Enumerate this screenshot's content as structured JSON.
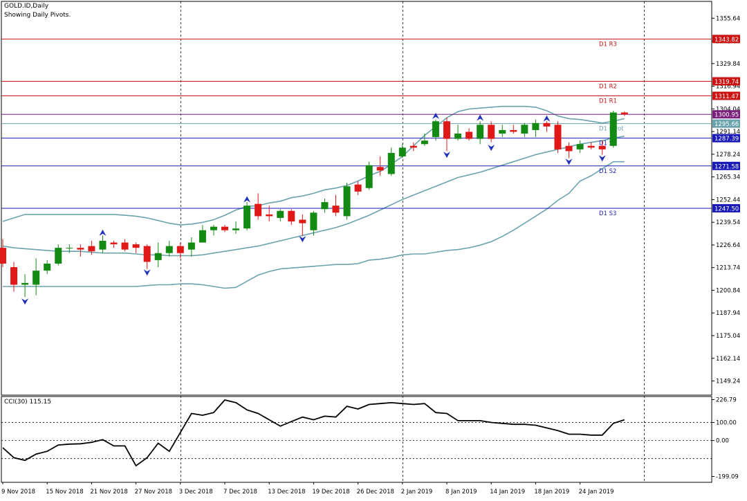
{
  "header": {
    "symbol_line": "GOLD.ID,Daily",
    "subtitle": "Showing Daily Pivots."
  },
  "cci_label": "CCI(30) 115.15",
  "colors": {
    "bull": "#138a13",
    "bear": "#e01818",
    "bands": "#6aa3ad",
    "resistance": "#cc1111",
    "support": "#1a1ab8",
    "pivot": "#6aa3ad",
    "close_line": "#7a1f7a",
    "fractal": "#2233bb",
    "cci_line": "#000000"
  },
  "chart_data": [
    {
      "type": "candlestick",
      "title": "GOLD.ID,Daily",
      "subtitle": "Showing Daily Pivots.",
      "ylim": [
        1140.0,
        1366.0
      ],
      "y_ticks": [
        "1355.64",
        "1342.64",
        "1329.84",
        "1316.94",
        "1304.04",
        "1291.14",
        "1278.24",
        "1265.34",
        "1252.44",
        "1239.54",
        "1226.64",
        "1213.74",
        "1200.84",
        "1187.94",
        "1175.04",
        "1162.14",
        "1149.24"
      ],
      "x_tick_labels": [
        "9 Nov 2018",
        "15 Nov 2018",
        "21 Nov 2018",
        "27 Nov 2018",
        "3 Dec 2018",
        "7 Dec 2018",
        "13 Dec 2018",
        "19 Dec 2018",
        "26 Dec 2018",
        "2 Jan 2019",
        "8 Jan 2019",
        "14 Jan 2019",
        "18 Jan 2019",
        "24 Jan 2019"
      ],
      "x_tick_bar_index": [
        0,
        4,
        8,
        12,
        16,
        20,
        24,
        28,
        32,
        36,
        40,
        44,
        48,
        52
      ],
      "grid": "vertical dashed at 3 Dec 2018, 2 Jan 2019 and right edge",
      "candles": [
        {
          "o": 1225.0,
          "h": 1230.0,
          "l": 1214.0,
          "c": 1216.0
        },
        {
          "o": 1214.0,
          "h": 1217.0,
          "l": 1200.0,
          "c": 1204.0
        },
        {
          "o": 1204.0,
          "h": 1210.0,
          "l": 1197.0,
          "c": 1205.0
        },
        {
          "o": 1204.0,
          "h": 1219.0,
          "l": 1198.0,
          "c": 1212.0
        },
        {
          "o": 1212.0,
          "h": 1218.0,
          "l": 1210.0,
          "c": 1216.0
        },
        {
          "o": 1216.0,
          "h": 1227.0,
          "l": 1215.0,
          "c": 1225.0
        },
        {
          "o": 1225.0,
          "h": 1227.0,
          "l": 1222.0,
          "c": 1225.0
        },
        {
          "o": 1225.0,
          "h": 1227.0,
          "l": 1220.0,
          "c": 1224.0
        },
        {
          "o": 1226.0,
          "h": 1229.0,
          "l": 1221.0,
          "c": 1223.0
        },
        {
          "o": 1224.0,
          "h": 1232.0,
          "l": 1222.0,
          "c": 1229.0
        },
        {
          "o": 1228.0,
          "h": 1229.0,
          "l": 1225.0,
          "c": 1227.0
        },
        {
          "o": 1228.0,
          "h": 1230.0,
          "l": 1223.0,
          "c": 1224.0
        },
        {
          "o": 1227.0,
          "h": 1228.0,
          "l": 1222.0,
          "c": 1225.0
        },
        {
          "o": 1226.0,
          "h": 1227.0,
          "l": 1213.0,
          "c": 1217.0
        },
        {
          "o": 1218.0,
          "h": 1228.0,
          "l": 1214.0,
          "c": 1222.0
        },
        {
          "o": 1222.0,
          "h": 1229.0,
          "l": 1220.0,
          "c": 1226.0
        },
        {
          "o": 1226.0,
          "h": 1228.0,
          "l": 1219.0,
          "c": 1222.0
        },
        {
          "o": 1224.0,
          "h": 1231.0,
          "l": 1220.0,
          "c": 1228.0
        },
        {
          "o": 1228.0,
          "h": 1238.0,
          "l": 1228.0,
          "c": 1235.0
        },
        {
          "o": 1235.0,
          "h": 1238.0,
          "l": 1232.0,
          "c": 1237.0
        },
        {
          "o": 1237.0,
          "h": 1238.0,
          "l": 1234.0,
          "c": 1235.0
        },
        {
          "o": 1235.0,
          "h": 1240.0,
          "l": 1233.0,
          "c": 1236.0
        },
        {
          "o": 1236.0,
          "h": 1251.0,
          "l": 1235.0,
          "c": 1249.0
        },
        {
          "o": 1250.0,
          "h": 1256.0,
          "l": 1241.0,
          "c": 1243.0
        },
        {
          "o": 1244.0,
          "h": 1249.0,
          "l": 1240.0,
          "c": 1243.0
        },
        {
          "o": 1242.0,
          "h": 1247.0,
          "l": 1240.0,
          "c": 1246.0
        },
        {
          "o": 1246.0,
          "h": 1247.0,
          "l": 1238.0,
          "c": 1240.0
        },
        {
          "o": 1241.0,
          "h": 1244.0,
          "l": 1232.0,
          "c": 1239.0
        },
        {
          "o": 1235.0,
          "h": 1246.0,
          "l": 1232.0,
          "c": 1245.0
        },
        {
          "o": 1247.0,
          "h": 1253.0,
          "l": 1245.0,
          "c": 1251.0
        },
        {
          "o": 1249.0,
          "h": 1255.0,
          "l": 1243.0,
          "c": 1245.0
        },
        {
          "o": 1243.0,
          "h": 1262.0,
          "l": 1241.0,
          "c": 1260.0
        },
        {
          "o": 1261.0,
          "h": 1263.0,
          "l": 1255.0,
          "c": 1257.0
        },
        {
          "o": 1259.0,
          "h": 1274.0,
          "l": 1258.0,
          "c": 1272.0
        },
        {
          "o": 1271.0,
          "h": 1277.0,
          "l": 1266.0,
          "c": 1269.0
        },
        {
          "o": 1267.0,
          "h": 1282.0,
          "l": 1266.0,
          "c": 1279.0
        },
        {
          "o": 1277.0,
          "h": 1284.0,
          "l": 1276.0,
          "c": 1282.0
        },
        {
          "o": 1283.0,
          "h": 1285.0,
          "l": 1280.0,
          "c": 1282.0
        },
        {
          "o": 1284.0,
          "h": 1290.0,
          "l": 1283.0,
          "c": 1286.0
        },
        {
          "o": 1288.0,
          "h": 1298.0,
          "l": 1286.0,
          "c": 1297.0
        },
        {
          "o": 1297.0,
          "h": 1299.0,
          "l": 1280.0,
          "c": 1287.0
        },
        {
          "o": 1287.0,
          "h": 1295.0,
          "l": 1286.0,
          "c": 1290.0
        },
        {
          "o": 1291.0,
          "h": 1293.0,
          "l": 1286.0,
          "c": 1287.0
        },
        {
          "o": 1287.0,
          "h": 1297.0,
          "l": 1284.0,
          "c": 1295.0
        },
        {
          "o": 1295.0,
          "h": 1297.0,
          "l": 1285.0,
          "c": 1287.0
        },
        {
          "o": 1290.0,
          "h": 1295.0,
          "l": 1288.0,
          "c": 1292.0
        },
        {
          "o": 1292.0,
          "h": 1295.0,
          "l": 1290.0,
          "c": 1291.0
        },
        {
          "o": 1290.0,
          "h": 1296.0,
          "l": 1288.0,
          "c": 1295.0
        },
        {
          "o": 1292.0,
          "h": 1298.0,
          "l": 1288.0,
          "c": 1296.0
        },
        {
          "o": 1296.0,
          "h": 1297.0,
          "l": 1291.0,
          "c": 1294.0
        },
        {
          "o": 1295.0,
          "h": 1297.0,
          "l": 1279.0,
          "c": 1281.0
        },
        {
          "o": 1283.0,
          "h": 1285.0,
          "l": 1276.0,
          "c": 1280.0
        },
        {
          "o": 1281.0,
          "h": 1286.0,
          "l": 1279.0,
          "c": 1284.0
        },
        {
          "o": 1283.0,
          "h": 1285.0,
          "l": 1281.0,
          "c": 1282.0
        },
        {
          "o": 1283.0,
          "h": 1286.0,
          "l": 1278.0,
          "c": 1281.0
        },
        {
          "o": 1283.0,
          "h": 1303.0,
          "l": 1282.0,
          "c": 1302.0
        },
        {
          "o": 1302.0,
          "h": 1302.5,
          "l": 1300.0,
          "c": 1300.95
        }
      ],
      "bands": {
        "upper": [
          1240.0,
          1242.0,
          1244.0,
          1244.0,
          1244.0,
          1244.0,
          1244.0,
          1244.0,
          1244.0,
          1244.0,
          1244.0,
          1243.5,
          1243.0,
          1242.0,
          1240.5,
          1239.0,
          1238.0,
          1238.5,
          1239.5,
          1241.0,
          1243.5,
          1246.5,
          1248.5,
          1249.0,
          1250.5,
          1251.5,
          1253.5,
          1254.5,
          1256.0,
          1258.0,
          1259.0,
          1260.5,
          1263.0,
          1266.0,
          1268.5,
          1272.5,
          1277.0,
          1283.0,
          1289.0,
          1294.0,
          1299.0,
          1302.5,
          1304.0,
          1304.5,
          1305.0,
          1305.5,
          1305.5,
          1305.5,
          1305.0,
          1303.0,
          1300.0,
          1298.5,
          1298.0,
          1297.0,
          1296.0,
          1297.0,
          1298.5
        ],
        "middle": [
          1226.0,
          1225.0,
          1224.5,
          1224.0,
          1223.5,
          1223.0,
          1223.0,
          1223.0,
          1222.5,
          1222.0,
          1222.0,
          1222.0,
          1221.5,
          1221.0,
          1221.0,
          1220.5,
          1220.5,
          1220.5,
          1221.0,
          1222.0,
          1223.0,
          1224.0,
          1225.0,
          1226.0,
          1227.5,
          1229.0,
          1230.5,
          1232.0,
          1233.5,
          1235.0,
          1236.5,
          1238.5,
          1241.0,
          1243.5,
          1246.5,
          1249.5,
          1252.5,
          1255.0,
          1257.5,
          1260.0,
          1262.5,
          1265.0,
          1266.5,
          1268.0,
          1270.0,
          1272.0,
          1274.0,
          1276.0,
          1278.0,
          1279.5,
          1281.0,
          1282.5,
          1284.0,
          1285.0,
          1286.0,
          1287.5,
          1288.5
        ],
        "lower": [
          1203.0,
          1203.0,
          1203.0,
          1203.0,
          1203.0,
          1203.0,
          1203.0,
          1203.0,
          1203.0,
          1203.0,
          1203.0,
          1203.0,
          1203.0,
          1203.5,
          1204.0,
          1204.0,
          1204.5,
          1204.5,
          1204.0,
          1203.0,
          1202.0,
          1202.5,
          1206.0,
          1209.5,
          1211.5,
          1213.0,
          1213.5,
          1214.0,
          1214.5,
          1215.0,
          1215.5,
          1215.5,
          1216.0,
          1218.0,
          1218.5,
          1219.5,
          1221.0,
          1221.5,
          1221.5,
          1222.5,
          1223.5,
          1224.0,
          1225.0,
          1226.5,
          1228.5,
          1231.5,
          1235.0,
          1239.0,
          1243.0,
          1247.0,
          1252.0,
          1256.0,
          1263.0,
          1266.0,
          1270.0,
          1274.0,
          1274.0
        ]
      },
      "pivot_levels": [
        {
          "name": "D1 R3",
          "value": 1343.82,
          "kind": "resistance"
        },
        {
          "name": "D1 R2",
          "value": 1319.74,
          "kind": "resistance"
        },
        {
          "name": "D1 R1",
          "value": 1311.47,
          "kind": "resistance"
        },
        {
          "name": "D1 Pivot",
          "value": 1295.66,
          "kind": "pivot"
        },
        {
          "name": "D1 S1",
          "value": 1287.39,
          "kind": "support"
        },
        {
          "name": "D1 S2",
          "value": 1271.58,
          "kind": "support"
        },
        {
          "name": "D1 S3",
          "value": 1247.5,
          "kind": "support"
        }
      ],
      "last_price": 1300.95,
      "fractals_up": [
        {
          "i": 9,
          "v": 1233.0
        },
        {
          "i": 22,
          "v": 1252.0
        },
        {
          "i": 39,
          "v": 1299.5
        },
        {
          "i": 43,
          "v": 1298.5
        },
        {
          "i": 49,
          "v": 1298.0
        }
      ],
      "fractals_down": [
        {
          "i": 2,
          "v": 1195.0
        },
        {
          "i": 13,
          "v": 1211.5
        },
        {
          "i": 27,
          "v": 1230.5
        },
        {
          "i": 40,
          "v": 1278.5
        },
        {
          "i": 44,
          "v": 1282.5
        },
        {
          "i": 51,
          "v": 1274.5
        },
        {
          "i": 54,
          "v": 1276.5
        }
      ]
    },
    {
      "type": "line",
      "title": "CCI(30) 115.15",
      "ylim": [
        -199.09,
        226.79
      ],
      "y_ticks": [
        "226.79",
        "100.00",
        "0.00",
        "-199.09"
      ],
      "levels": [
        100,
        0,
        -100
      ],
      "values": [
        -40,
        -95,
        -110,
        -75,
        -60,
        -25,
        -20,
        -18,
        -10,
        5,
        -30,
        -30,
        -140,
        -95,
        -15,
        -60,
        45,
        150,
        140,
        155,
        225,
        210,
        170,
        150,
        115,
        80,
        105,
        130,
        115,
        135,
        130,
        190,
        175,
        200,
        205,
        210,
        205,
        200,
        205,
        155,
        150,
        110,
        110,
        110,
        100,
        95,
        90,
        90,
        85,
        70,
        55,
        35,
        35,
        30,
        30,
        95,
        115
      ]
    }
  ]
}
